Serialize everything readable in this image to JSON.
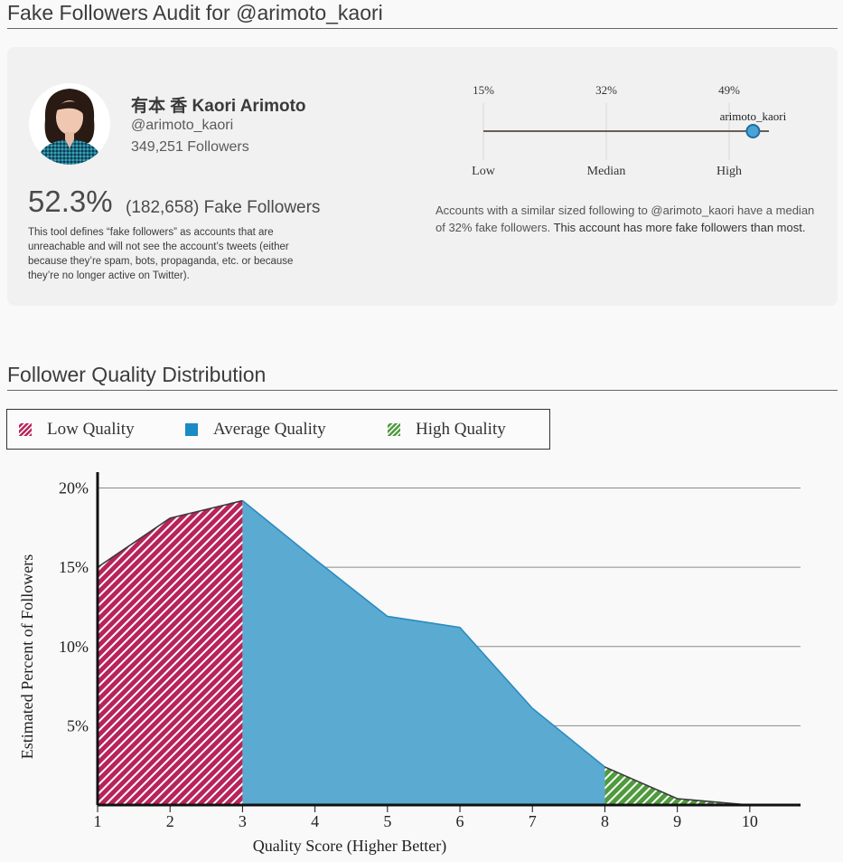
{
  "page": {
    "title": "Fake Followers Audit for @arimoto_kaori"
  },
  "profile": {
    "avatar_icon": "profile-photo",
    "name": "有本 香 Kaori Arimoto",
    "handle": "@arimoto_kaori",
    "followers": "349,251 Followers",
    "fake_percent": "52.3%",
    "fake_count": "(182,658) Fake Followers",
    "definition": "This tool defines “fake followers” as accounts that are unreachable and will not see the account’s tweets (either because they’re spam, bots, propaganda, etc. or because they’re no longer active on Twitter)."
  },
  "comparison": {
    "low_pct": "15%",
    "median_pct": "32%",
    "high_pct": "49%",
    "low_label": "Low",
    "median_label": "Median",
    "high_label": "High",
    "account_label": "arimoto_kaori",
    "account_value_percent": 52.3,
    "scale_min_percent": 15,
    "scale_max_percent": 49,
    "text_prefix": "Accounts with a similar sized following to @arimoto_kaori have a median of 32% fake followers.",
    "text_suffix": " This account has more fake followers than most."
  },
  "distribution": {
    "section_title": "Follower Quality Distribution",
    "legend": {
      "low": "Low Quality",
      "average": "Average Quality",
      "high": "High Quality"
    },
    "colors": {
      "low": "#b8245a",
      "average": "#5aaad2",
      "average_line": "#2a8bc0",
      "high": "#4e9a3c"
    }
  },
  "chart_data": {
    "type": "area",
    "xlabel": "Quality Score (Higher Better)",
    "ylabel": "Estimated Percent of Followers",
    "x": [
      1,
      2,
      3,
      4,
      5,
      6,
      7,
      8,
      9,
      10
    ],
    "y": [
      15.0,
      18.1,
      19.2,
      15.5,
      11.9,
      11.2,
      6.1,
      2.4,
      0.4,
      0.0
    ],
    "ytick_labels": [
      "5%",
      "10%",
      "15%",
      "20%"
    ],
    "yticks": [
      5,
      10,
      15,
      20
    ],
    "ylim": [
      0,
      21
    ],
    "xlim": [
      1,
      10.7
    ],
    "xtick_labels": [
      "1",
      "2",
      "3",
      "4",
      "5",
      "6",
      "7",
      "8",
      "9",
      "10"
    ],
    "regions": [
      {
        "name": "Low Quality",
        "from": 1,
        "to": 3,
        "pattern": "hatched"
      },
      {
        "name": "Average Quality",
        "from": 3,
        "to": 8,
        "pattern": "solid"
      },
      {
        "name": "High Quality",
        "from": 8,
        "to": 10,
        "pattern": "hatched"
      }
    ],
    "grid": true
  }
}
